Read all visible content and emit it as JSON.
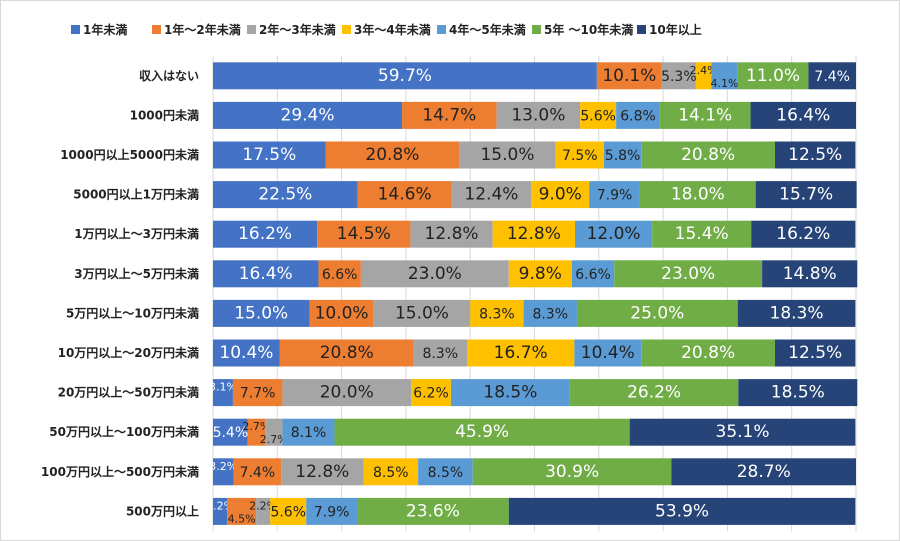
{
  "chart_data": {
    "type": "bar",
    "orientation": "horizontal",
    "stacked": true,
    "categories": [
      "収入はない",
      "1000円未満",
      "1000円以上5000円未満",
      "5000円以上1万円未満",
      "1万円以上～3万円未満",
      "3万円以上～5万円未満",
      "5万円以上～10万円未満",
      "10万円以上～20万円未満",
      "20万円以上～50万円未満",
      "50万円以上～100万円未満",
      "100万円以上～500万円未満",
      "500万円以上"
    ],
    "series": [
      {
        "name": "1年未満",
        "color": "#4472C4",
        "values": [
          59.7,
          29.4,
          17.5,
          22.5,
          16.2,
          16.4,
          15.0,
          10.4,
          3.1,
          5.4,
          3.2,
          2.2
        ]
      },
      {
        "name": "1年～2年未満",
        "color": "#ED7D31",
        "values": [
          10.1,
          14.7,
          20.8,
          14.6,
          14.5,
          6.6,
          10.0,
          20.8,
          7.7,
          2.7,
          7.4,
          4.5
        ]
      },
      {
        "name": "2年～3年未満",
        "color": "#A5A5A5",
        "values": [
          5.3,
          13.0,
          15.0,
          12.4,
          12.8,
          23.0,
          15.0,
          8.3,
          20.0,
          2.7,
          12.8,
          2.2
        ]
      },
      {
        "name": "3年～4年未満",
        "color": "#FFC000",
        "values": [
          2.4,
          5.6,
          7.5,
          9.0,
          12.8,
          9.8,
          8.3,
          16.7,
          6.2,
          0.0,
          8.5,
          5.6
        ]
      },
      {
        "name": "4年～5年未満",
        "color": "#5B9BD5",
        "values": [
          4.1,
          6.8,
          5.8,
          7.9,
          12.0,
          6.6,
          8.3,
          10.4,
          18.5,
          8.1,
          8.5,
          7.9
        ]
      },
      {
        "name": "5年 ～10年未満",
        "color": "#70AD47",
        "values": [
          11.0,
          14.1,
          20.8,
          18.0,
          15.4,
          23.0,
          25.0,
          20.8,
          26.2,
          45.9,
          30.9,
          23.6
        ]
      },
      {
        "name": "10年以上",
        "color": "#264478",
        "values": [
          7.4,
          16.4,
          12.5,
          15.7,
          16.2,
          14.8,
          18.3,
          12.5,
          18.5,
          35.1,
          28.7,
          53.9
        ]
      }
    ],
    "xaxis": {
      "min": 0,
      "max": 100,
      "step": 10,
      "ticks": [
        "0.0%",
        "10.0%",
        "20.0%",
        "30.0%",
        "40.0%",
        "50.0%",
        "60.0%",
        "70.0%",
        "80.0%",
        "90.0%",
        "100.0%"
      ]
    },
    "grid": true,
    "legend_position": "top",
    "title": "",
    "xlabel": "",
    "ylabel": ""
  }
}
